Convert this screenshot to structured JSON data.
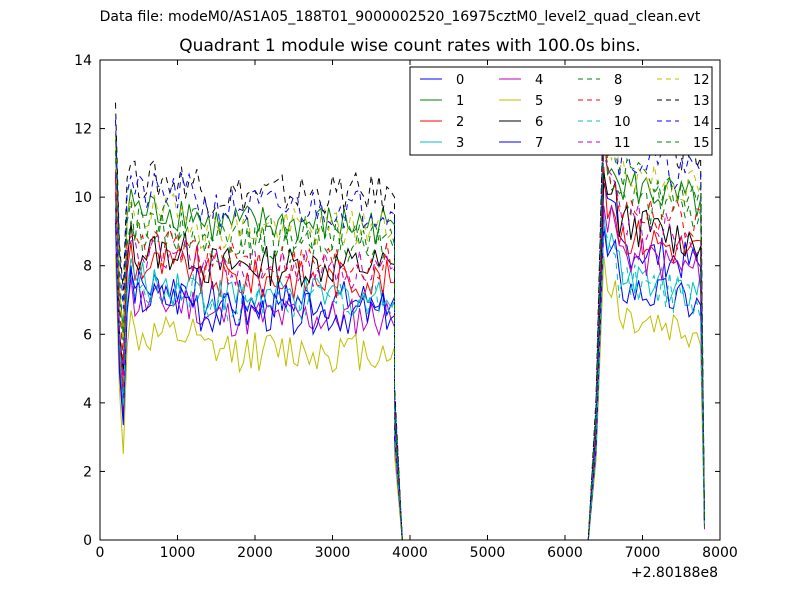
{
  "figure": {
    "suptitle": "Data file: modeM0/AS1A05_188T01_9000002520_16975cztM0_level2_quad_clean.evt"
  },
  "chart_data": {
    "type": "line",
    "title": "Quadrant 1 module wise count rates with 100.0s bins.",
    "xlabel": "",
    "ylabel": "",
    "x_offset_label": "+2.80188e8",
    "xlim": [
      0,
      8000
    ],
    "ylim": [
      0,
      14
    ],
    "xticks": [
      "0",
      "1000",
      "2000",
      "3000",
      "4000",
      "5000",
      "6000",
      "7000",
      "8000"
    ],
    "yticks": [
      "0",
      "2",
      "4",
      "6",
      "8",
      "10",
      "12",
      "14"
    ],
    "grid": false,
    "legend_position": "top-right",
    "legend_columns": 4,
    "x_segments": [
      {
        "start": 200,
        "end": 3800,
        "step": 50
      },
      {
        "start": 3900,
        "end": 6300,
        "step": 50
      },
      {
        "start": 6300,
        "end": 7800,
        "step": 50
      }
    ],
    "series": [
      {
        "name": "0",
        "color": "#0000ff",
        "dash": false,
        "gap_level": 0,
        "plateau1": 7.0,
        "plateau2": 8.6
      },
      {
        "name": "1",
        "color": "#008000",
        "dash": false,
        "gap_level": 0,
        "plateau1": 9.2,
        "plateau2": 10.4
      },
      {
        "name": "2",
        "color": "#ff0000",
        "dash": false,
        "gap_level": 0,
        "plateau1": 7.6,
        "plateau2": 9.0
      },
      {
        "name": "3",
        "color": "#00bfbf",
        "dash": false,
        "gap_level": 0,
        "plateau1": 7.1,
        "plateau2": 7.9
      },
      {
        "name": "4",
        "color": "#bf00bf",
        "dash": false,
        "gap_level": 0,
        "plateau1": 6.5,
        "plateau2": 8.4
      },
      {
        "name": "5",
        "color": "#bfbf00",
        "dash": false,
        "gap_level": 0,
        "plateau1": 5.5,
        "plateau2": 6.6
      },
      {
        "name": "6",
        "color": "#000000",
        "dash": false,
        "gap_level": 0,
        "plateau1": 8.0,
        "plateau2": 9.3
      },
      {
        "name": "7",
        "color": "#0000ff",
        "dash": false,
        "gap_level": 0,
        "plateau1": 6.6,
        "plateau2": 7.4
      },
      {
        "name": "8",
        "color": "#008000",
        "dash": true,
        "gap_level": 0,
        "plateau1": 8.6,
        "plateau2": 10.0
      },
      {
        "name": "9",
        "color": "#ff0000",
        "dash": true,
        "gap_level": 0,
        "plateau1": 8.1,
        "plateau2": 9.8
      },
      {
        "name": "10",
        "color": "#00bfbf",
        "dash": true,
        "gap_level": 0,
        "plateau1": 6.9,
        "plateau2": 7.6
      },
      {
        "name": "11",
        "color": "#bf00bf",
        "dash": true,
        "gap_level": 0,
        "plateau1": 7.9,
        "plateau2": 9.5
      },
      {
        "name": "12",
        "color": "#bfbf00",
        "dash": true,
        "gap_level": 0,
        "plateau1": 9.1,
        "plateau2": 10.8
      },
      {
        "name": "13",
        "color": "#000000",
        "dash": true,
        "gap_level": 0,
        "plateau1": 10.1,
        "plateau2": 11.8
      },
      {
        "name": "14",
        "color": "#0000ff",
        "dash": true,
        "gap_level": 0,
        "plateau1": 9.7,
        "plateau2": 11.2
      },
      {
        "name": "15",
        "color": "#008000",
        "dash": true,
        "gap_level": 0,
        "plateau1": 8.9,
        "plateau2": 10.6
      }
    ]
  }
}
